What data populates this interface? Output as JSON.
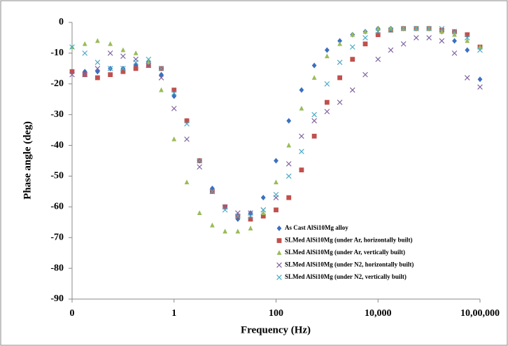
{
  "chart_data": {
    "type": "scatter",
    "x_label": "Frequency (Hz)",
    "y_label": "Phase angle (deg)",
    "x_log": true,
    "xlim": [
      0.01,
      1000000
    ],
    "xticks": [
      {
        "value": 0.01,
        "label": "0"
      },
      1,
      100,
      {
        "value": 10000,
        "label": "10,000"
      },
      {
        "value": 1000000,
        "label": "10,00,000"
      }
    ],
    "ylim": [
      -90,
      0
    ],
    "yticks": [
      -90,
      -80,
      -70,
      -60,
      -50,
      -40,
      -30,
      -20,
      -10,
      0
    ],
    "x": [
      0.01,
      0.0178,
      0.0316,
      0.0562,
      0.1,
      0.178,
      0.316,
      0.562,
      1,
      1.78,
      3.16,
      5.62,
      10,
      17.8,
      31.6,
      56.2,
      100,
      178,
      316,
      562,
      1000,
      1780,
      3160,
      5620,
      10000,
      17800,
      31600,
      56200,
      100000,
      178000,
      316000,
      562000,
      1000000
    ],
    "series": [
      {
        "name": "As Cast AlSi10Mg alloy",
        "color": "#3a70c0",
        "marker": "diamond",
        "values": [
          -16,
          -16,
          -16,
          -15,
          -15,
          -14,
          -13,
          -17,
          -24,
          -32,
          -45,
          -54,
          -60,
          -64,
          -62,
          -57,
          -45,
          -32,
          -22,
          -14,
          -9,
          -6,
          -4,
          -3,
          -2,
          -2,
          -2,
          -2,
          -2,
          -3,
          -6,
          -9,
          -18.5
        ]
      },
      {
        "name": "SLMed AlSi10Mg (under Ar, horizontally built)",
        "color": "#c0504d",
        "marker": "square",
        "values": [
          -16,
          -17,
          -18,
          -17,
          -16,
          -15,
          -14,
          -15,
          -22,
          -32,
          -45,
          -55,
          -60,
          -63,
          -64,
          -63,
          -61,
          -57,
          -48,
          -37,
          -26,
          -18,
          -12,
          -7,
          -4,
          -2.5,
          -2,
          -2,
          -2,
          -2.5,
          -3,
          -4,
          -8
        ]
      },
      {
        "name": "SLMed AlSi10Mg (under Ar, vertically built)",
        "color": "#9bbb59",
        "marker": "triangle",
        "values": [
          -8,
          -7,
          -6,
          -7,
          -9,
          -10,
          -13,
          -22,
          -38,
          -52,
          -62,
          -66,
          -68,
          -68,
          -67,
          -62,
          -52,
          -40,
          -28,
          -18,
          -11,
          -7,
          -4,
          -3,
          -2,
          -2,
          -2,
          -2,
          -2,
          -3,
          -4,
          -6,
          -8
        ]
      },
      {
        "name": "SLMed AlSi10Mg (under N2, horizontally built)",
        "color": "#8064a2",
        "marker": "x",
        "values": [
          -17,
          -17,
          -15,
          -10,
          -11,
          -12,
          -14,
          -18,
          -28,
          -38,
          -47,
          -55,
          -60,
          -62,
          -62,
          -61,
          -57,
          -46,
          -37,
          -32,
          -29,
          -26,
          -22,
          -17,
          -12,
          -9,
          -7,
          -5,
          -5,
          -6,
          -10,
          -18,
          -21
        ]
      },
      {
        "name": "SLMed AlSi10Mg (under N2, vertically built)",
        "color": "#4bacc6",
        "marker": "x",
        "values": [
          -8,
          -10,
          -13,
          -15,
          -15,
          -13,
          -12,
          -15,
          -23,
          -33,
          -45,
          -55,
          -61,
          -63,
          -63,
          -61,
          -56,
          -50,
          -42,
          -30,
          -20,
          -13,
          -8,
          -5,
          -3,
          -2.5,
          -2,
          -2,
          -2,
          -2,
          -3,
          -5,
          -9
        ]
      }
    ]
  }
}
